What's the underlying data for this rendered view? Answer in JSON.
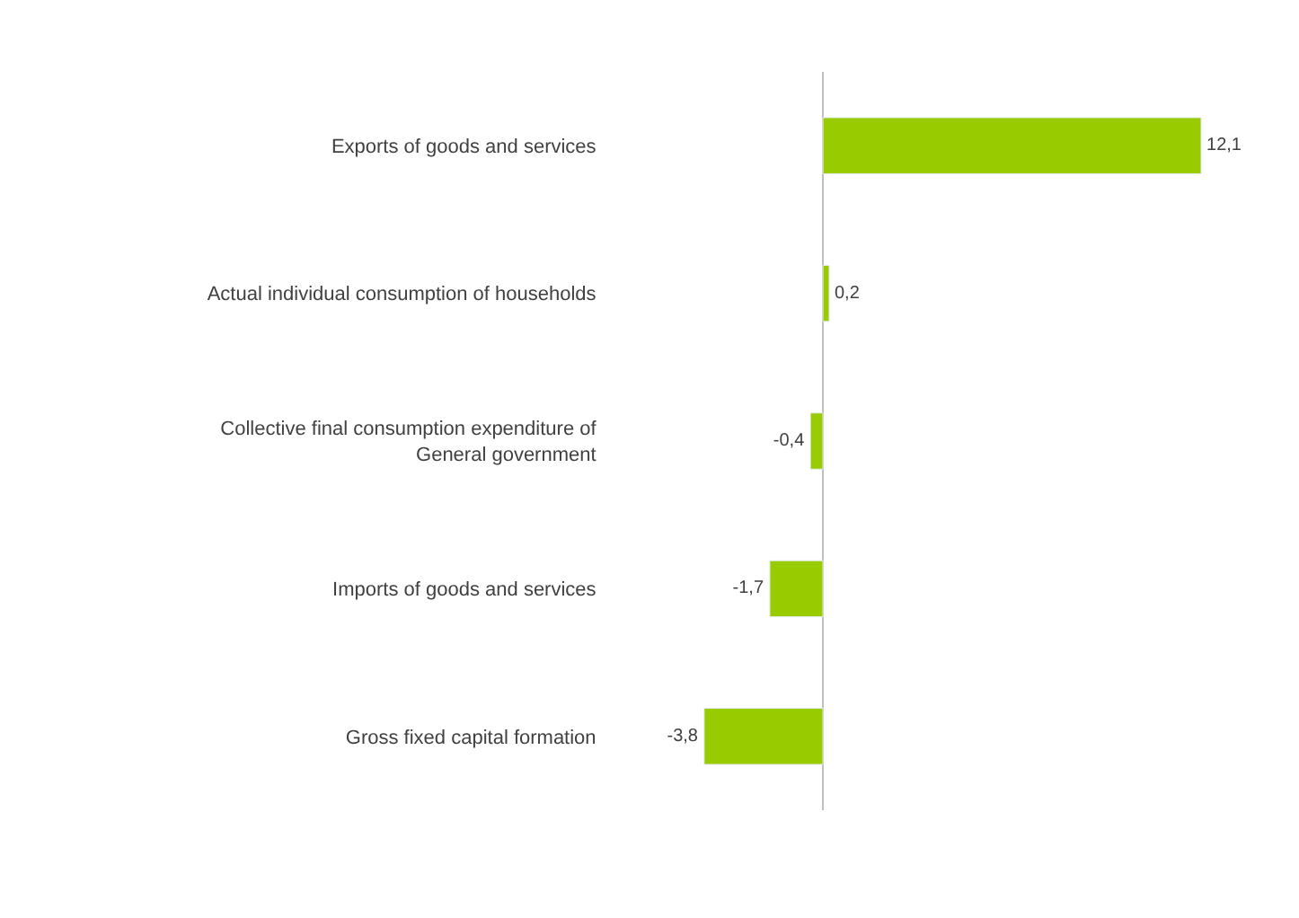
{
  "chart_data": {
    "type": "bar",
    "orientation": "horizontal",
    "categories": [
      "Exports of goods and services",
      "Actual individual consumption of households",
      "Collective final consumption expenditure of\nGeneral government",
      "Imports of goods and services",
      "Gross fixed capital formation"
    ],
    "values": [
      12.1,
      0.2,
      -0.4,
      -1.7,
      -3.8
    ],
    "value_labels": [
      "12,1",
      "0,2",
      "-0,4",
      "-1,7",
      "-3,8"
    ],
    "color": "#99cc00"
  }
}
